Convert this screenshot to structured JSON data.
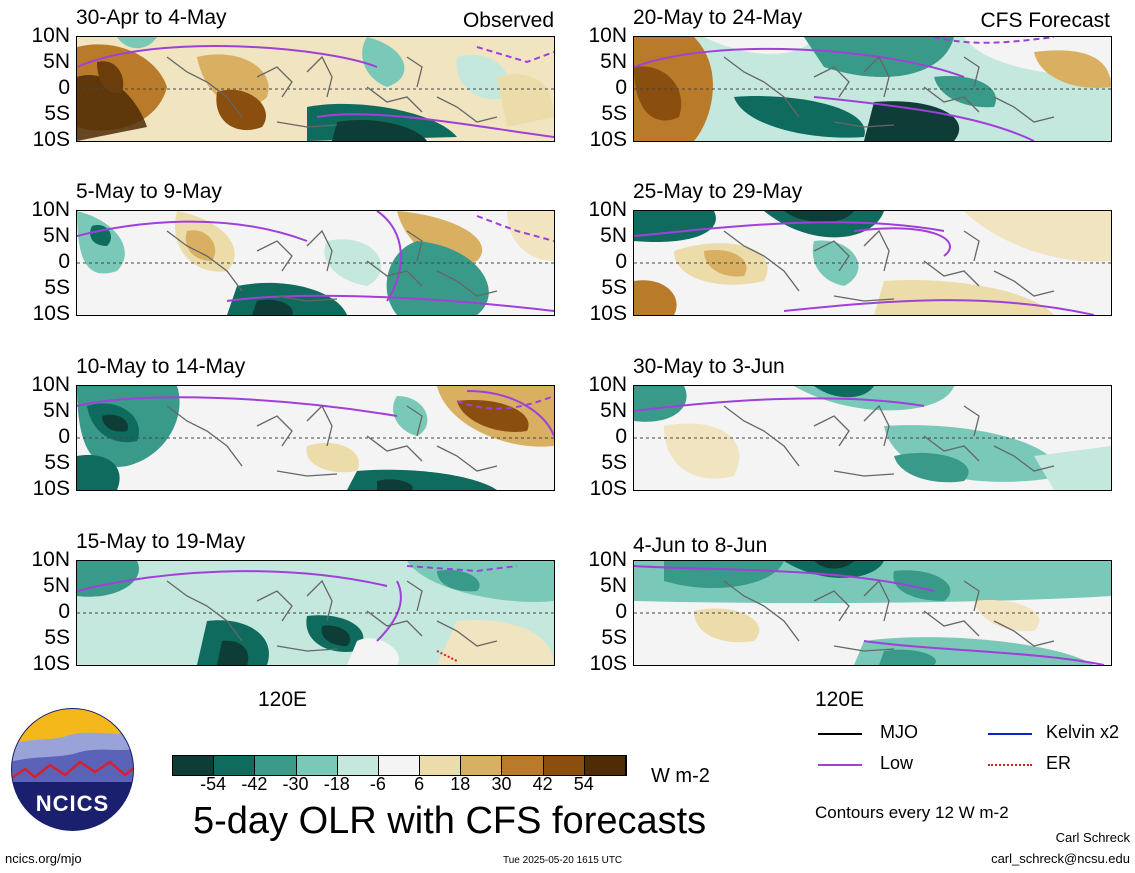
{
  "observed_label": "Observed",
  "forecast_label": "CFS Forecast",
  "panels_left": [
    {
      "title": "30-Apr to 4-May"
    },
    {
      "title": "5-May to 9-May"
    },
    {
      "title": "10-May to 14-May"
    },
    {
      "title": "15-May to 19-May"
    }
  ],
  "panels_right": [
    {
      "title": "20-May to 24-May"
    },
    {
      "title": "25-May to 29-May"
    },
    {
      "title": "30-May to 3-Jun"
    },
    {
      "title": "4-Jun to 8-Jun"
    }
  ],
  "lat_labels": [
    "10N",
    "5N",
    "0",
    "5S",
    "10S"
  ],
  "lon_label": "120E",
  "colorbar": {
    "ticks": [
      "-54",
      "-42",
      "-30",
      "-18",
      "-6",
      "6",
      "18",
      "30",
      "42",
      "54"
    ],
    "colors": [
      "#0d3d36",
      "#0f6b5e",
      "#3a9a8a",
      "#7ac9b8",
      "#c4e8dd",
      "#f4f4f4",
      "#ecdcaa",
      "#d9b061",
      "#b97b2a",
      "#8a4e0f",
      "#4e2c06"
    ],
    "units": "W m-2"
  },
  "legend": {
    "mjo": "MJO",
    "low": "Low",
    "kelvin": "Kelvin x2",
    "er": "ER",
    "colors": {
      "mjo": "#000000",
      "low": "#a040d8",
      "kelvin": "#1020d0",
      "er": "#d02020"
    }
  },
  "contours_note": "Contours every 12 W m-2",
  "main_title": "5-day OLR with CFS forecasts",
  "logo_text": "NCICS",
  "website": "ncics.org/mjo",
  "timestamp": "Tue 2025-05-20 1615 UTC",
  "author": "Carl Schreck",
  "email": "carl_schreck@ncsu.edu"
}
